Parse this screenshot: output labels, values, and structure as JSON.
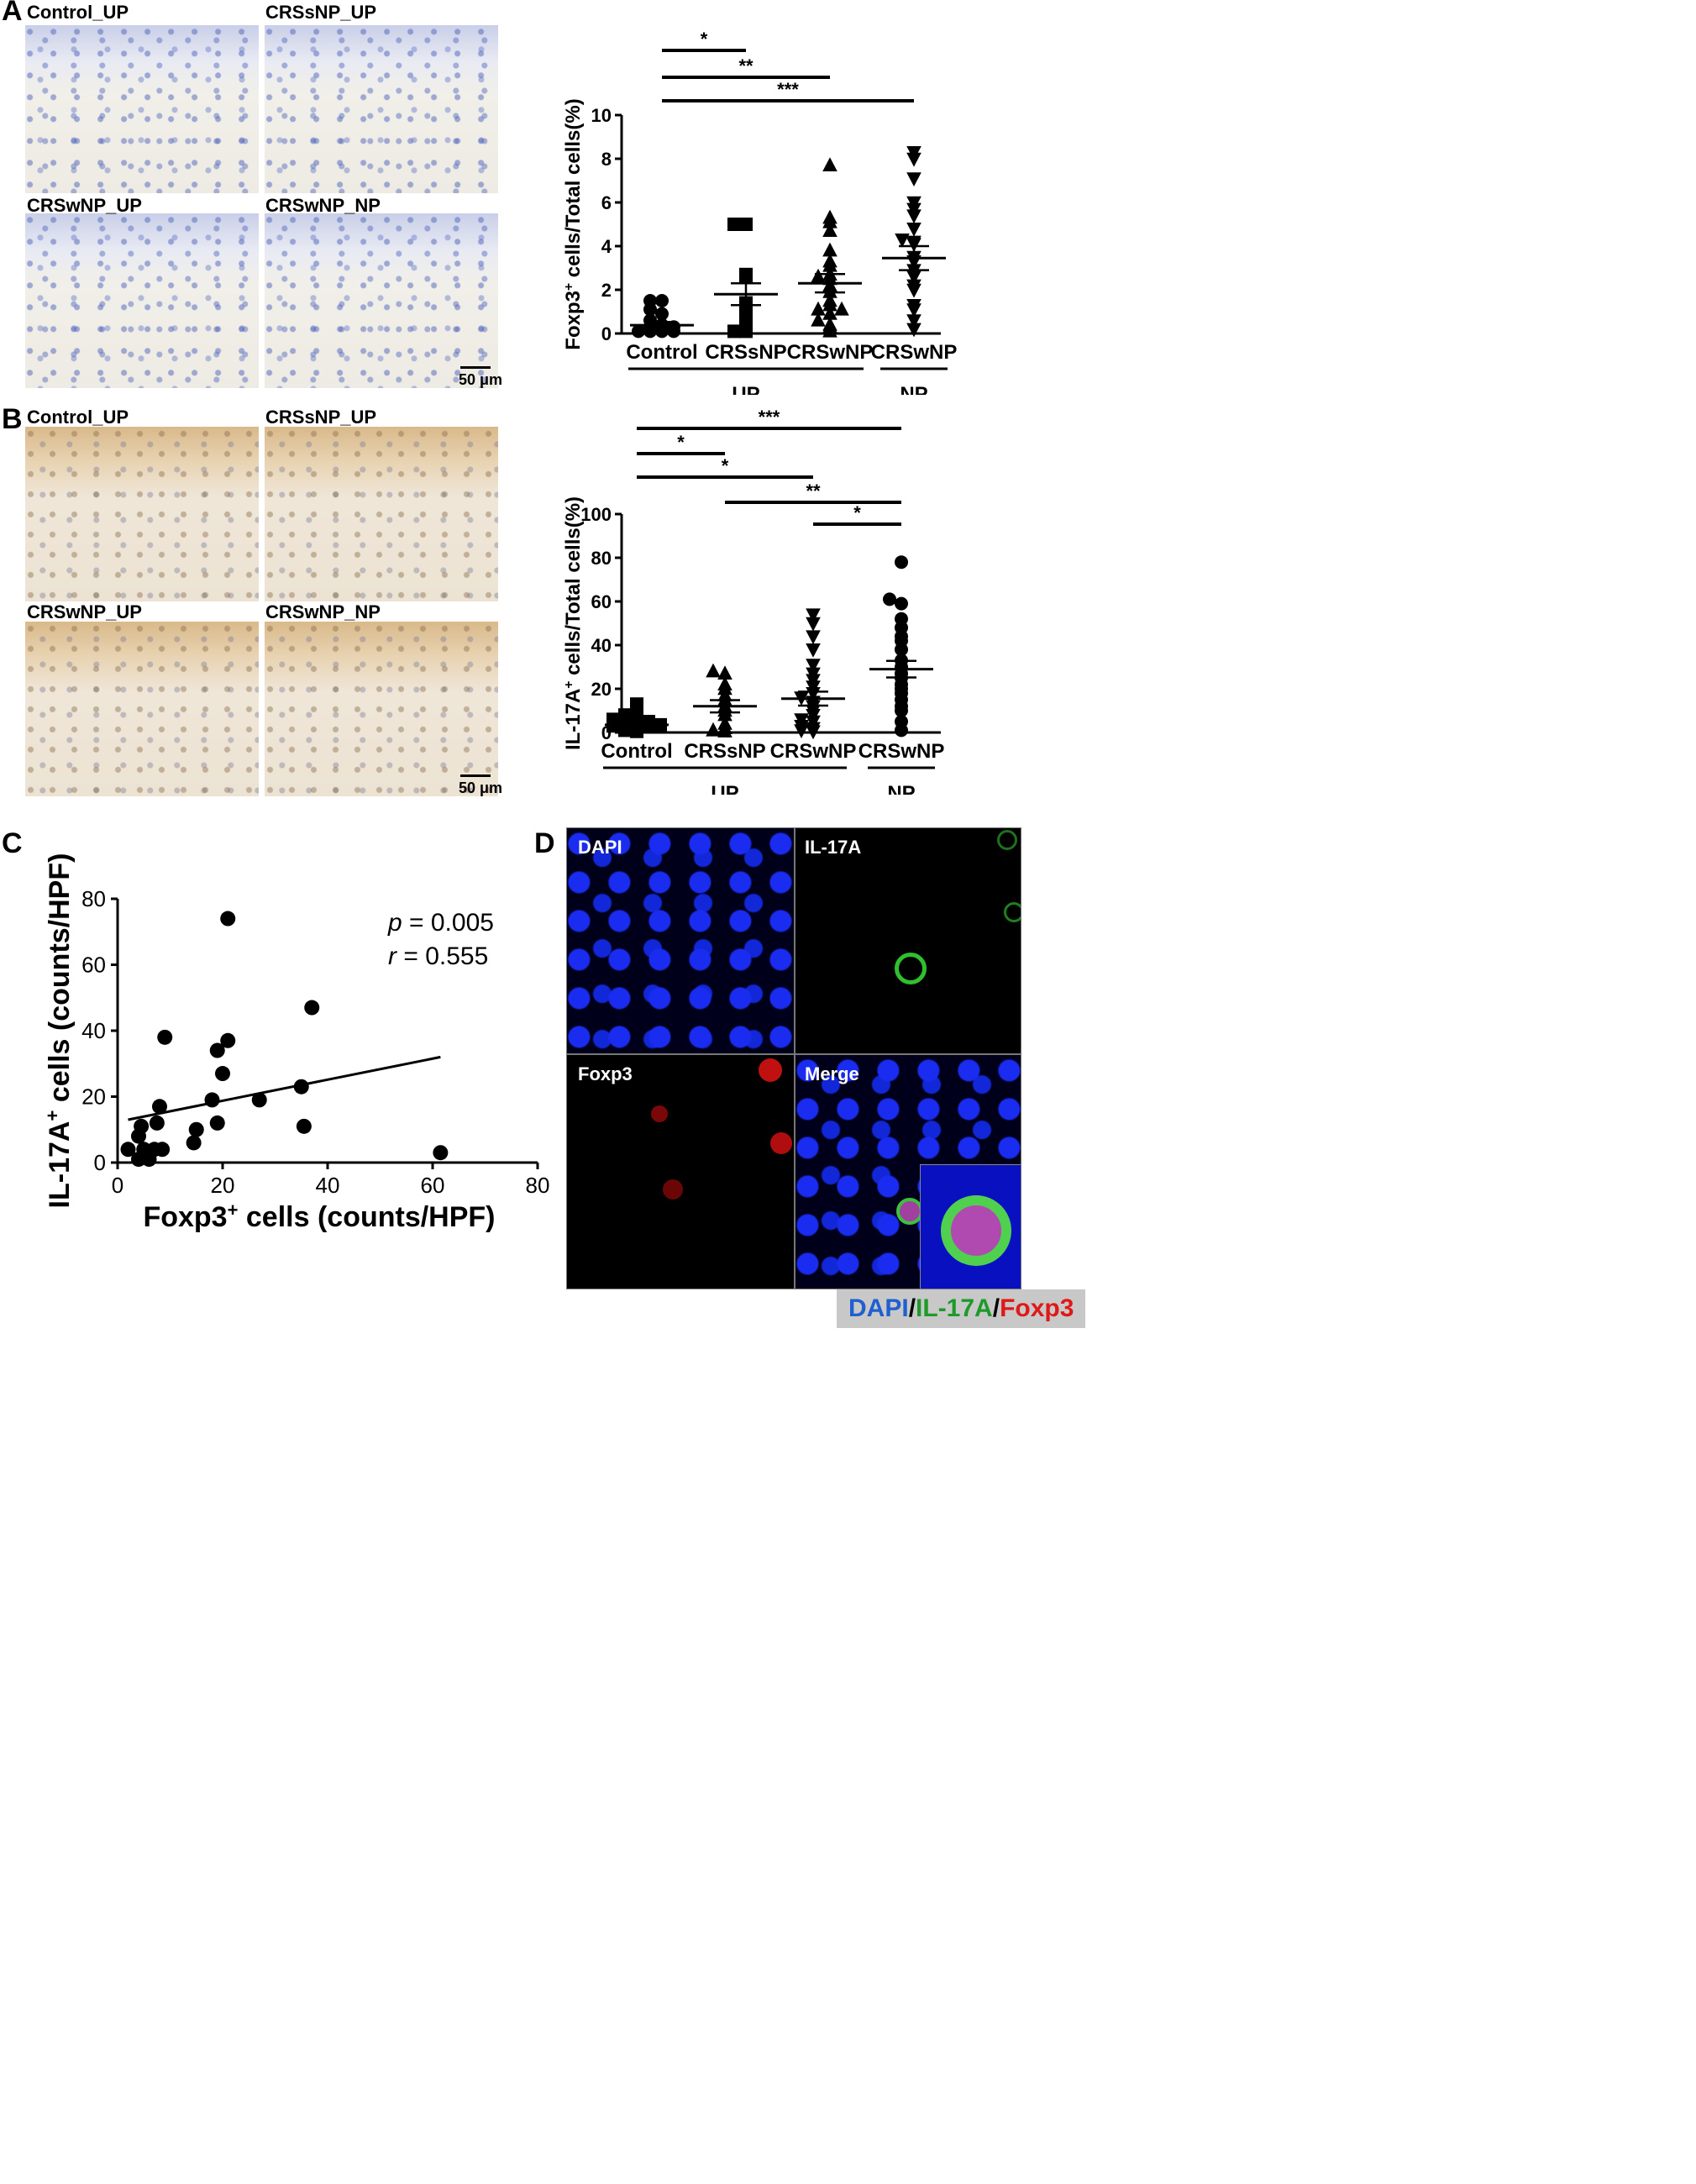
{
  "panels": {
    "A": {
      "letter": "A",
      "images": [
        "Control_UP",
        "CRSsNP_UP",
        "CRSwNP_UP",
        "CRSwNP_NP"
      ],
      "scalebar": "50 μm"
    },
    "B": {
      "letter": "B",
      "images": [
        "Control_UP",
        "CRSsNP_UP",
        "CRSwNP_UP",
        "CRSwNP_NP"
      ],
      "scalebar": "50 μm"
    },
    "C": {
      "letter": "C"
    },
    "D": {
      "letter": "D",
      "images": [
        "DAPI",
        "IL-17A",
        "Foxp3",
        "Merge"
      ],
      "legend": {
        "dapi": "DAPI",
        "sep": "/",
        "il17a": "IL-17A",
        "foxp3": "Foxp3"
      }
    }
  },
  "chart_data": [
    {
      "id": "A-scatter",
      "type": "scatter",
      "ylabel_parts": [
        "Foxp3",
        "+",
        " cells/Total cells(%)"
      ],
      "ylim": [
        0,
        10
      ],
      "yticks": [
        "0",
        "2",
        "4",
        "6",
        "8",
        "10"
      ],
      "categories": [
        "Control",
        "CRSsNP",
        "CRSwNP",
        "CRSwNP"
      ],
      "group_labels": [
        {
          "label": "UP",
          "span": [
            0,
            2
          ]
        },
        {
          "label": "NP",
          "span": [
            3,
            3
          ]
        }
      ],
      "markers": [
        "circle",
        "square",
        "triangle",
        "triangle-down"
      ],
      "series": [
        {
          "values": [
            0.1,
            0.1,
            0.1,
            0.1,
            0.2,
            0.3,
            0.3,
            0.4,
            0.6,
            0.9,
            1.1,
            1.5,
            1.5
          ]
        },
        {
          "values": [
            0.1,
            0.1,
            0.3,
            0.5,
            0.8,
            1.0,
            1.4,
            2.6,
            2.7,
            5.0,
            5.0
          ]
        },
        {
          "values": [
            0.1,
            0.3,
            0.4,
            0.6,
            0.9,
            1.1,
            1.1,
            1.3,
            1.5,
            1.9,
            2.2,
            2.5,
            2.6,
            2.7,
            3.1,
            3.3,
            3.8,
            4.7,
            5.1,
            5.3,
            7.7
          ]
        },
        {
          "values": [
            0.2,
            0.6,
            1.1,
            1.3,
            2.0,
            2.2,
            2.6,
            2.9,
            3.3,
            3.5,
            4.1,
            4.2,
            4.3,
            4.8,
            5.4,
            5.7,
            6.0,
            7.1,
            8.0,
            8.3
          ]
        }
      ],
      "means": [
        0.38,
        1.8,
        2.3,
        3.45
      ],
      "sems": [
        0.15,
        0.5,
        0.42,
        0.55
      ],
      "significance": [
        {
          "from": 0,
          "to": 1,
          "label": "*"
        },
        {
          "from": 0,
          "to": 2,
          "label": "**"
        },
        {
          "from": 0,
          "to": 3,
          "label": "***"
        }
      ]
    },
    {
      "id": "B-scatter",
      "type": "scatter",
      "ylabel_parts": [
        "IL-17A",
        "+",
        " cells/Total cells(%)"
      ],
      "ylim": [
        0,
        100
      ],
      "yticks": [
        "0",
        "20",
        "40",
        "60",
        "80",
        "100"
      ],
      "categories": [
        "Control",
        "CRSsNP",
        "CRSwNP",
        "CRSwNP"
      ],
      "group_labels": [
        {
          "label": "UP",
          "span": [
            0,
            2
          ]
        },
        {
          "label": "NP",
          "span": [
            3,
            3
          ]
        }
      ],
      "markers": [
        "square",
        "triangle",
        "triangle-down",
        "circle"
      ],
      "series": [
        {
          "values": [
            0.5,
            1,
            1.5,
            2,
            2.5,
            3,
            3.5,
            4,
            4.5,
            5,
            6,
            7,
            8,
            13
          ]
        },
        {
          "values": [
            0.5,
            1,
            2,
            4,
            8,
            10,
            12,
            15,
            17,
            20,
            22,
            27,
            28
          ]
        },
        {
          "values": [
            0.5,
            1,
            2,
            3,
            5,
            6,
            8,
            10,
            12,
            14,
            16,
            18,
            21,
            24,
            27,
            31,
            38,
            44,
            50,
            54
          ]
        },
        {
          "values": [
            1,
            5,
            10,
            12,
            15,
            18,
            20,
            22,
            25,
            27,
            30,
            33,
            38,
            42,
            44,
            48,
            52,
            59,
            61,
            78
          ]
        }
      ],
      "means": [
        3.5,
        12,
        15.5,
        29
      ],
      "sems": [
        1,
        2.8,
        3.2,
        3.8
      ],
      "significance": [
        {
          "from": 0,
          "to": 3,
          "label": "***"
        },
        {
          "from": 0,
          "to": 1,
          "label": "*"
        },
        {
          "from": 0,
          "to": 2,
          "label": "*"
        },
        {
          "from": 1,
          "to": 3,
          "label": "**"
        },
        {
          "from": 2,
          "to": 3,
          "label": "*"
        }
      ]
    },
    {
      "id": "C-correlation",
      "type": "scatter",
      "xlabel_parts": [
        "Foxp3",
        "+",
        " cells (counts/HPF)"
      ],
      "ylabel_parts": [
        "IL-17A",
        "+",
        " cells (counts/HPF)"
      ],
      "xlim": [
        0,
        80
      ],
      "ylim": [
        0,
        80
      ],
      "xticks": [
        "0",
        "20",
        "40",
        "60",
        "80"
      ],
      "yticks": [
        "0",
        "20",
        "40",
        "60",
        "80"
      ],
      "points": [
        [
          2,
          4
        ],
        [
          4,
          1
        ],
        [
          4,
          8
        ],
        [
          4.5,
          11
        ],
        [
          5,
          4
        ],
        [
          6,
          1
        ],
        [
          7,
          4
        ],
        [
          7.5,
          12
        ],
        [
          8,
          17
        ],
        [
          8.5,
          4
        ],
        [
          9,
          38
        ],
        [
          14.5,
          6
        ],
        [
          15,
          10
        ],
        [
          18,
          19
        ],
        [
          19,
          12
        ],
        [
          19,
          34
        ],
        [
          20,
          27
        ],
        [
          21,
          37
        ],
        [
          21,
          74
        ],
        [
          27,
          19
        ],
        [
          35,
          23
        ],
        [
          35.5,
          11
        ],
        [
          37,
          47
        ],
        [
          61.5,
          3
        ]
      ],
      "fit": {
        "x": [
          2,
          61.5
        ],
        "y": [
          13,
          32
        ]
      },
      "annotation": {
        "p_label": "p",
        "p_value": " = 0.005",
        "r_label": "r",
        "r_value": " = 0.555"
      }
    }
  ]
}
